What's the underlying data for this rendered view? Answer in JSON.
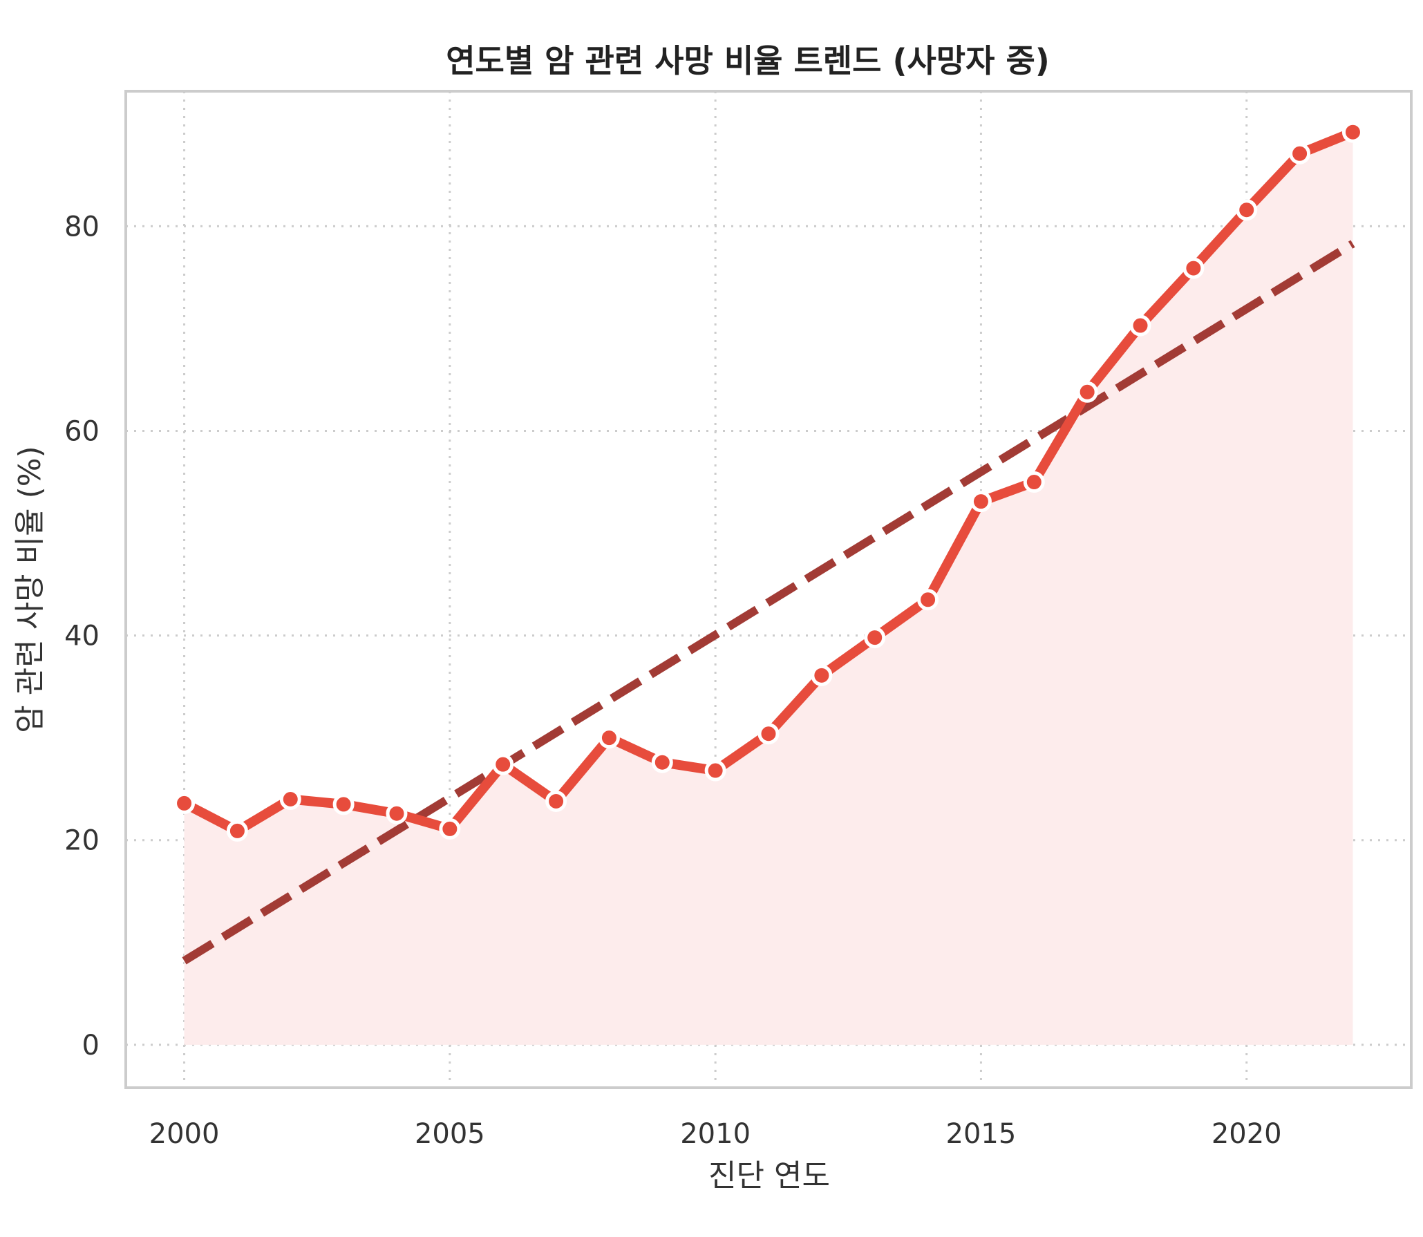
{
  "chart_data": {
    "type": "line",
    "title": "연도별 암 관련 사망 비율 트렌드 (사망자 중)",
    "xlabel": "진단 연도",
    "ylabel": "암 관련 사망 비율 (%)",
    "xlim": [
      1998.9,
      2023.1
    ],
    "ylim": [
      -4.2,
      93.2
    ],
    "x_ticks": [
      2000,
      2005,
      2010,
      2015,
      2020
    ],
    "y_ticks": [
      0,
      20,
      40,
      60,
      80
    ],
    "grid": true,
    "colors": {
      "line": "#e74c3c",
      "trend": "#a23b35",
      "fill": "#fdecec",
      "frame": "#cccccc"
    },
    "x": [
      2000,
      2001,
      2002,
      2003,
      2004,
      2005,
      2006,
      2007,
      2008,
      2009,
      2010,
      2011,
      2012,
      2013,
      2014,
      2015,
      2016,
      2017,
      2018,
      2019,
      2020,
      2021,
      2022
    ],
    "values": [
      23.6,
      20.9,
      24.0,
      23.5,
      22.6,
      21.1,
      27.4,
      23.8,
      30.0,
      27.6,
      26.8,
      30.4,
      36.1,
      39.8,
      43.5,
      53.1,
      55.0,
      63.8,
      70.3,
      75.9,
      81.6,
      87.1,
      89.2
    ],
    "trend_line": {
      "x": [
        2000,
        2022
      ],
      "y": [
        8.2,
        78.3
      ]
    }
  }
}
